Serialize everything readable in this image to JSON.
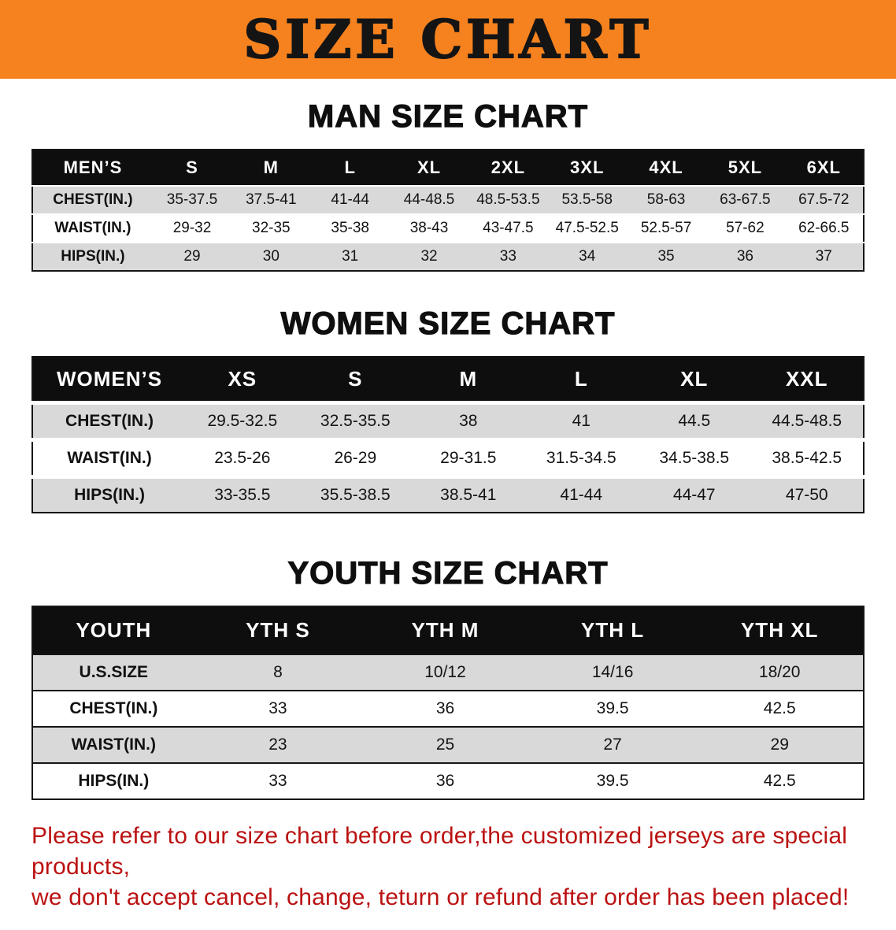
{
  "banner": {
    "title": "SIZE CHART",
    "bg_color": "#f5821f",
    "text_color": "#141414"
  },
  "colors": {
    "table_header_bg": "#0e0e0e",
    "table_header_text": "#ffffff",
    "row_shade": "#d9d9d9",
    "disclaimer_text": "#bb1212"
  },
  "men": {
    "heading": "MAN SIZE CHART",
    "columns": [
      "MEN’S",
      "S",
      "M",
      "L",
      "XL",
      "2XL",
      "3XL",
      "4XL",
      "5XL",
      "6XL"
    ],
    "rows": [
      {
        "label": "CHEST(IN.)",
        "values": [
          "35-37.5",
          "37.5-41",
          "41-44",
          "44-48.5",
          "48.5-53.5",
          "53.5-58",
          "58-63",
          "63-67.5",
          "67.5-72"
        ]
      },
      {
        "label": "WAIST(IN.)",
        "values": [
          "29-32",
          "32-35",
          "35-38",
          "38-43",
          "43-47.5",
          "47.5-52.5",
          "52.5-57",
          "57-62",
          "62-66.5"
        ]
      },
      {
        "label": "HIPS(IN.)",
        "values": [
          "29",
          "30",
          "31",
          "32",
          "33",
          "34",
          "35",
          "36",
          "37"
        ]
      }
    ]
  },
  "women": {
    "heading": "WOMEN SIZE CHART",
    "columns": [
      "WOMEN’S",
      "XS",
      "S",
      "M",
      "L",
      "XL",
      "XXL"
    ],
    "rows": [
      {
        "label": "CHEST(IN.)",
        "values": [
          "29.5-32.5",
          "32.5-35.5",
          "38",
          "41",
          "44.5",
          "44.5-48.5"
        ]
      },
      {
        "label": "WAIST(IN.)",
        "values": [
          "23.5-26",
          "26-29",
          "29-31.5",
          "31.5-34.5",
          "34.5-38.5",
          "38.5-42.5"
        ]
      },
      {
        "label": "HIPS(IN.)",
        "values": [
          "33-35.5",
          "35.5-38.5",
          "38.5-41",
          "41-44",
          "44-47",
          "47-50"
        ]
      }
    ]
  },
  "youth": {
    "heading": "YOUTH SIZE CHART",
    "columns": [
      "YOUTH",
      "YTH S",
      "YTH M",
      "YTH L",
      "YTH XL"
    ],
    "rows": [
      {
        "label": "U.S.SIZE",
        "values": [
          "8",
          "10/12",
          "14/16",
          "18/20"
        ]
      },
      {
        "label": "CHEST(IN.)",
        "values": [
          "33",
          "36",
          "39.5",
          "42.5"
        ]
      },
      {
        "label": "WAIST(IN.)",
        "values": [
          "23",
          "25",
          "27",
          "29"
        ]
      },
      {
        "label": "HIPS(IN.)",
        "values": [
          "33",
          "36",
          "39.5",
          "42.5"
        ]
      }
    ]
  },
  "disclaimer": {
    "lines": [
      "Please refer to our size chart before order,the customized jerseys are special products,",
      "we don't accept cancel, change, teturn or refund after order has been placed!"
    ]
  }
}
